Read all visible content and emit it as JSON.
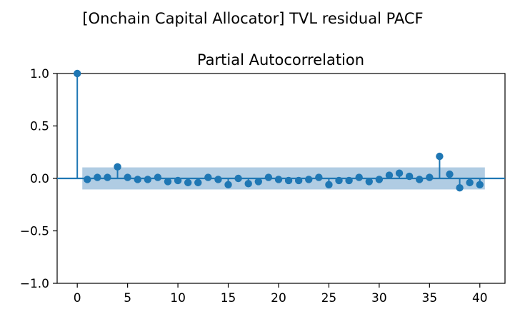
{
  "figure": {
    "suptitle": "[Onchain Capital Allocator] TVL residual PACF"
  },
  "chart_data": {
    "type": "stem",
    "title": "Partial Autocorrelation",
    "xlabel": "",
    "ylabel": "",
    "xlim": [
      -2,
      42.5
    ],
    "ylim": [
      -1.0,
      1.0
    ],
    "x_ticks": [
      0,
      5,
      10,
      15,
      20,
      25,
      30,
      35,
      40
    ],
    "x_tick_labels": [
      "0",
      "5",
      "10",
      "15",
      "20",
      "25",
      "30",
      "35",
      "40"
    ],
    "y_ticks": [
      1.0,
      0.5,
      0.0,
      -0.5,
      -1.0
    ],
    "y_tick_labels": [
      "1.0",
      "0.5",
      "0.0",
      "−0.5",
      "−1.0"
    ],
    "grid": false,
    "confidence_band": {
      "x_start": 0.5,
      "x_end": 40.5,
      "lower": -0.105,
      "upper": 0.105,
      "color": "#b0cce3"
    },
    "series": [
      {
        "color": "#1f77b4",
        "x": [
          0,
          1,
          2,
          3,
          4,
          5,
          6,
          7,
          8,
          9,
          10,
          11,
          12,
          13,
          14,
          15,
          16,
          17,
          18,
          19,
          20,
          21,
          22,
          23,
          24,
          25,
          26,
          27,
          28,
          29,
          30,
          31,
          32,
          33,
          34,
          35,
          36,
          37,
          38,
          39,
          40
        ],
        "values": [
          1.0,
          -0.01,
          0.01,
          0.01,
          0.11,
          0.01,
          -0.01,
          -0.01,
          0.01,
          -0.03,
          -0.02,
          -0.04,
          -0.04,
          0.01,
          -0.01,
          -0.06,
          0.0,
          -0.05,
          -0.03,
          0.01,
          -0.01,
          -0.02,
          -0.02,
          -0.01,
          0.01,
          -0.06,
          -0.02,
          -0.02,
          0.01,
          -0.03,
          -0.01,
          0.03,
          0.05,
          0.02,
          -0.01,
          0.01,
          0.21,
          0.04,
          -0.09,
          -0.04,
          -0.06
        ]
      }
    ]
  }
}
